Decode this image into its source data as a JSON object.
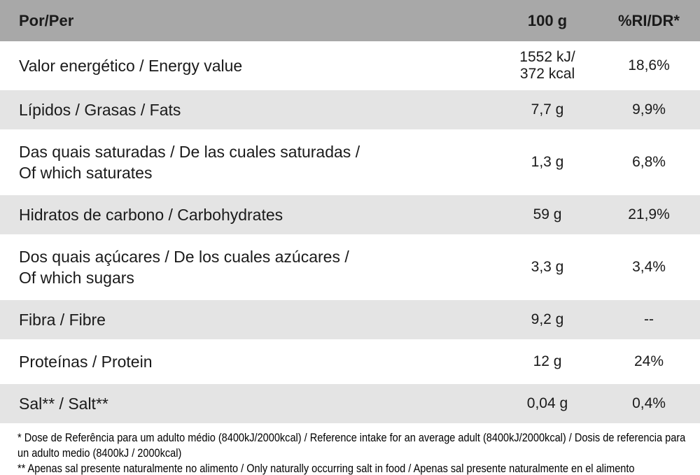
{
  "table": {
    "header": {
      "col1": "Por/Per",
      "col2": "100 g",
      "col3": "%RI/DR*"
    },
    "rows": [
      {
        "label": "Valor energético / Energy value",
        "value": "1552 kJ/\n372 kcal",
        "ri": "18,6%"
      },
      {
        "label": "Lípidos / Grasas / Fats",
        "value": "7,7 g",
        "ri": "9,9%"
      },
      {
        "label": "Das quais saturadas / De las cuales saturadas / Of which saturates",
        "value": "1,3 g",
        "ri": "6,8%"
      },
      {
        "label": "Hidratos de carbono / Carbohydrates",
        "value": "59 g",
        "ri": "21,9%"
      },
      {
        "label": "Dos quais açúcares / De los cuales azúcares / Of which sugars",
        "value": "3,3 g",
        "ri": "3,4%"
      },
      {
        "label": "Fibra / Fibre",
        "value": "9,2 g",
        "ri": "--"
      },
      {
        "label": "Proteínas / Protein",
        "value": "12 g",
        "ri": "24%"
      },
      {
        "label": "Sal** / Salt**",
        "value": "0,04 g",
        "ri": "0,4%"
      }
    ]
  },
  "footnotes": [
    "* Dose de Referência para um adulto médio (8400kJ/2000kcal) / Reference intake for an average adult (8400kJ/2000kcal) / Dosis de referencia para un adulto medio (8400kJ / 2000kcal)",
    "** Apenas sal presente naturalmente no alimento / Only naturally occurring salt in food / Apenas sal presente naturalmente en el alimento"
  ],
  "colors": {
    "header_bg": "#a8a8a8",
    "row_alt_bg": "#e4e4e4",
    "text": "#1a1a1a"
  }
}
